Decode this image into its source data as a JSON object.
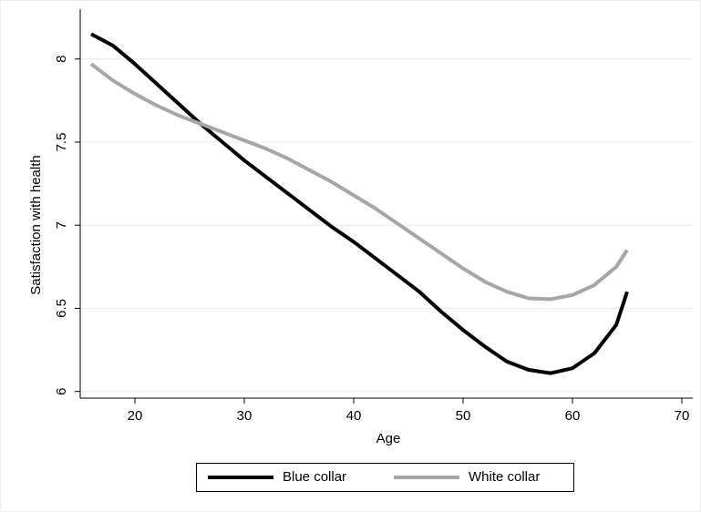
{
  "chart_data": {
    "type": "line",
    "x_label": "Age",
    "y_label": "Satisfaction with health",
    "x": [
      16,
      18,
      20,
      22,
      24,
      26,
      28,
      30,
      32,
      34,
      36,
      38,
      40,
      42,
      44,
      46,
      48,
      50,
      52,
      54,
      56,
      58,
      60,
      62,
      64,
      65
    ],
    "series": [
      {
        "name": "Blue collar",
        "color": "#000000",
        "values": [
          8.15,
          8.08,
          7.97,
          7.85,
          7.73,
          7.61,
          7.5,
          7.39,
          7.29,
          7.19,
          7.09,
          6.99,
          6.9,
          6.8,
          6.7,
          6.6,
          6.48,
          6.37,
          6.27,
          6.18,
          6.13,
          6.11,
          6.14,
          6.23,
          6.4,
          6.6
        ]
      },
      {
        "name": "White collar",
        "color": "#a6a6a6",
        "values": [
          7.97,
          7.87,
          7.79,
          7.72,
          7.66,
          7.61,
          7.56,
          7.51,
          7.46,
          7.4,
          7.33,
          7.26,
          7.18,
          7.1,
          7.01,
          6.92,
          6.83,
          6.74,
          6.66,
          6.6,
          6.56,
          6.555,
          6.58,
          6.64,
          6.75,
          6.85
        ]
      }
    ],
    "xlim": [
      15,
      71
    ],
    "xticks": [
      20,
      30,
      40,
      50,
      60,
      70
    ],
    "ylim": [
      5.96,
      8.3
    ],
    "yticks": [
      6,
      6.5,
      7,
      7.5,
      8
    ],
    "grid": true,
    "legend": "bottom"
  }
}
